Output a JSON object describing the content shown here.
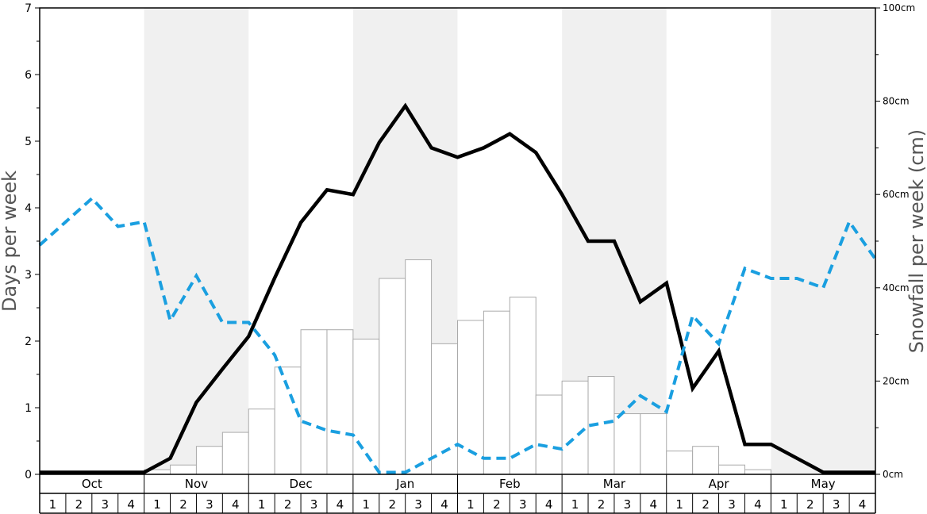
{
  "chart_data": {
    "type": "bar+line",
    "title": "",
    "ylabel_left": "Days per week",
    "ylabel_right": "Snowfall per week (cm)",
    "y_left_range": [
      0,
      7
    ],
    "y_left_ticks": [
      "0",
      "1",
      "2",
      "3",
      "4",
      "5",
      "6",
      "7"
    ],
    "y_right_range": [
      0,
      100
    ],
    "y_right_ticks": [
      "0cm",
      "20cm",
      "40cm",
      "60cm",
      "80cm",
      "100cm"
    ],
    "months": [
      "Oct",
      "Nov",
      "Dec",
      "Jan",
      "Feb",
      "Mar",
      "Apr",
      "May"
    ],
    "week_labels": [
      "1",
      "2",
      "3",
      "4"
    ],
    "shaded_months": [
      "Nov",
      "Jan",
      "Mar",
      "May"
    ],
    "colors": {
      "shade": "#f0f0f0",
      "bar_fill": "#ffffff",
      "bar_stroke": "#aaaaaa",
      "line_solid": "#000000",
      "line_dashed": "#1a9fe0",
      "frame": "#000000"
    },
    "series": [
      {
        "type": "bar",
        "axis": "right",
        "values": [
          0,
          0,
          0,
          0,
          1,
          2,
          6,
          9,
          14,
          23,
          31,
          31,
          29,
          42,
          46,
          28,
          33,
          35,
          38,
          17,
          20,
          21,
          13,
          13,
          5,
          6,
          2,
          1,
          0,
          0,
          0,
          0
        ]
      },
      {
        "type": "line",
        "style": "solid",
        "axis": "left",
        "values": [
          0.03,
          0.03,
          0.03,
          0.03,
          0.03,
          0.24,
          1.08,
          1.58,
          2.07,
          2.95,
          3.78,
          4.27,
          4.2,
          4.98,
          5.53,
          4.9,
          4.76,
          4.9,
          5.11,
          4.83,
          4.2,
          3.5,
          3.5,
          2.59,
          2.87,
          1.29,
          1.85,
          0.45,
          0.45,
          0.24,
          0.03,
          0.03,
          0.03
        ]
      },
      {
        "type": "line",
        "style": "dashed",
        "axis": "left",
        "values": [
          3.44,
          3.79,
          4.14,
          3.72,
          3.79,
          2.31,
          2.98,
          2.28,
          2.28,
          1.79,
          0.8,
          0.66,
          0.59,
          0.03,
          0.03,
          0.24,
          0.45,
          0.24,
          0.24,
          0.45,
          0.38,
          0.73,
          0.8,
          1.18,
          0.94,
          2.38,
          1.96,
          3.09,
          2.94,
          2.94,
          2.8,
          3.79,
          3.23
        ]
      }
    ]
  }
}
